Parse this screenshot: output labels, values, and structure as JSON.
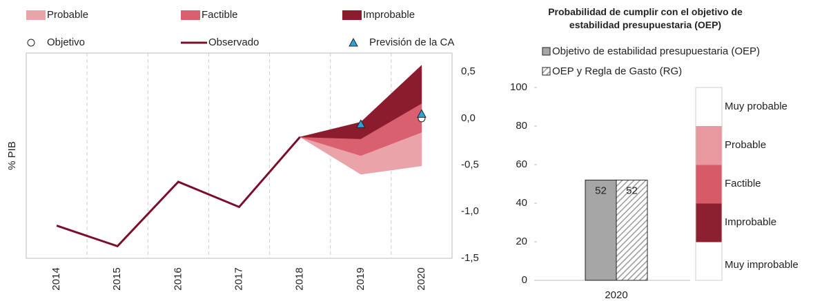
{
  "chart_data": [
    {
      "type": "fan",
      "y_label": "% PIB",
      "categories": [
        "2014",
        "2015",
        "2016",
        "2017",
        "2018",
        "2019",
        "2020"
      ],
      "ylim": [
        -1.5,
        0.7
      ],
      "yticks": [
        {
          "value": 0.5,
          "label": "0,5"
        },
        {
          "value": 0.0,
          "label": "0,0"
        },
        {
          "value": -0.5,
          "label": "-0,5"
        },
        {
          "value": -1.0,
          "label": "-1,0"
        },
        {
          "value": -1.5,
          "label": "-1,5"
        }
      ],
      "bands": [
        {
          "name": "Probable",
          "color": "#eba3aa",
          "lower": [
            null,
            null,
            null,
            null,
            -0.2,
            -0.6,
            -0.51
          ],
          "upper": [
            null,
            null,
            null,
            null,
            -0.2,
            -0.4,
            -0.15
          ]
        },
        {
          "name": "Factible",
          "color": "#d9606e",
          "lower": [
            null,
            null,
            null,
            null,
            -0.2,
            -0.4,
            -0.15
          ],
          "upper": [
            null,
            null,
            null,
            null,
            -0.2,
            -0.22,
            0.16
          ]
        },
        {
          "name": "Improbable",
          "color": "#8b1c2e",
          "lower": [
            null,
            null,
            null,
            null,
            -0.2,
            -0.22,
            0.16
          ],
          "upper": [
            null,
            null,
            null,
            null,
            -0.2,
            -0.04,
            0.57
          ]
        }
      ],
      "target": {
        "name": "Objetivo",
        "values": [
          null,
          null,
          null,
          null,
          null,
          null,
          0.0
        ]
      },
      "observed": {
        "name": "Observado",
        "color": "#7b0f2b",
        "values": [
          -1.15,
          -1.37,
          -0.68,
          -0.95,
          -0.2,
          null,
          null
        ]
      },
      "forecast": {
        "name": "Previsión de la CA",
        "color": "#2aa4d8",
        "values": [
          null,
          null,
          null,
          null,
          null,
          -0.07,
          0.04
        ]
      }
    },
    {
      "type": "bar",
      "title": "Probabilidad de cumplir con el objetivo de estabilidad presupuestaria (OEP)",
      "categories": [
        "2020"
      ],
      "ylim": [
        0,
        100
      ],
      "yticks": [
        0,
        20,
        40,
        60,
        80,
        100
      ],
      "series": [
        {
          "name": "Objetivo de estabilidad presupuestaria (OEP)",
          "color": "#a6a6a6",
          "values": [
            52
          ]
        },
        {
          "name": "OEP y Regla de Gasto (RG)",
          "color": "#ffffff",
          "pattern": "hatch",
          "values": [
            52
          ]
        }
      ],
      "scale": [
        {
          "label": "Muy improbable",
          "from": 0,
          "to": 20,
          "color": "#ffffff"
        },
        {
          "label": "Improbable",
          "from": 20,
          "to": 40,
          "color": "#8c1f30"
        },
        {
          "label": "Factible",
          "from": 40,
          "to": 60,
          "color": "#d65a68"
        },
        {
          "label": "Probable",
          "from": 60,
          "to": 80,
          "color": "#e8989f"
        },
        {
          "label": "Muy probable",
          "from": 80,
          "to": 100,
          "color": "#ffffff"
        }
      ]
    }
  ]
}
